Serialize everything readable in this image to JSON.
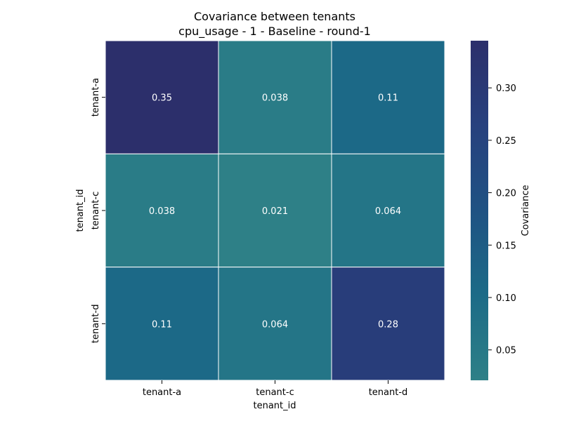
{
  "chart_data": {
    "type": "heatmap",
    "title": "Covariance between tenants",
    "subtitle": "cpu_usage - 1 - Baseline - round-1",
    "xlabel": "tenant_id",
    "ylabel": "tenant_id",
    "x_categories": [
      "tenant-a",
      "tenant-c",
      "tenant-d"
    ],
    "y_categories": [
      "tenant-a",
      "tenant-c",
      "tenant-d"
    ],
    "values": [
      [
        0.345,
        0.038,
        0.11
      ],
      [
        0.038,
        0.021,
        0.064
      ],
      [
        0.11,
        0.064,
        0.28
      ]
    ],
    "annotations": [
      [
        "0.35",
        "0.038",
        "0.11"
      ],
      [
        "0.038",
        "0.021",
        "0.064"
      ],
      [
        "0.11",
        "0.064",
        "0.28"
      ]
    ],
    "colorbar": {
      "label": "Covariance",
      "range": [
        0.021,
        0.345
      ],
      "ticks": [
        0.05,
        0.1,
        0.15,
        0.2,
        0.25,
        0.3
      ],
      "tick_labels": [
        "0.05",
        "0.10",
        "0.15",
        "0.20",
        "0.25",
        "0.30"
      ],
      "colors": [
        "#2e8087",
        "#1c6b87",
        "#1f5283",
        "#27417e",
        "#2c2f6b"
      ]
    },
    "grid_line_color": "#ffffff"
  }
}
